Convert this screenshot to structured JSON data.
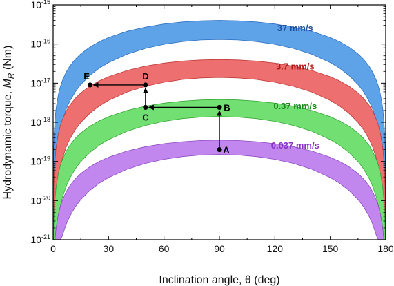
{
  "chart_data": {
    "type": "area",
    "xlabel": "Inclination angle, θ (deg)",
    "ylabel": {
      "base": "Hydrodynamic torque, ",
      "symbol": "M",
      "subscript": "R",
      "unit": " (Nm)"
    },
    "xlim": [
      0,
      180
    ],
    "ylim": [
      1e-21,
      1e-15
    ],
    "yscale": "log",
    "xticks": [
      0,
      30,
      60,
      90,
      120,
      150,
      180
    ],
    "xtick_labels": [
      "0",
      "30",
      "60",
      "90",
      "120",
      "150",
      "180"
    ],
    "yticks": [
      {
        "value": 1e-15,
        "base": "10",
        "exp": "-15"
      },
      {
        "value": 1e-16,
        "base": "10",
        "exp": "-16"
      },
      {
        "value": 1e-17,
        "base": "10",
        "exp": "-17"
      },
      {
        "value": 1e-18,
        "base": "10",
        "exp": "-18"
      },
      {
        "value": 1e-19,
        "base": "10",
        "exp": "-19"
      },
      {
        "value": 1e-20,
        "base": "10",
        "exp": "-20"
      },
      {
        "value": 1e-21,
        "base": "10",
        "exp": "-21"
      }
    ],
    "grid": false,
    "band_shape_note": "",
    "series": [
      {
        "name": "37 mm/s",
        "fill": "#5ea2e8",
        "stroke": "#2f70c0",
        "label_color": "#1f4f9c",
        "peak_upper": 4e-16,
        "peak_lower": 1.3e-16
      },
      {
        "name": "3.7 mm/s",
        "fill": "#ee6f6f",
        "stroke": "#c03a3a",
        "label_color": "#b01818",
        "peak_upper": 4e-17,
        "peak_lower": 1.4e-17
      },
      {
        "name": "0.37 mm/s",
        "fill": "#72df72",
        "stroke": "#35a535",
        "label_color": "#1d8a1d",
        "peak_upper": 3.8e-18,
        "peak_lower": 1.4e-18
      },
      {
        "name": "0.037 mm/s",
        "fill": "#c287ee",
        "stroke": "#8c49bd",
        "label_color": "#8a2fc7",
        "peak_upper": 3.5e-19,
        "peak_lower": 1.5e-19
      }
    ],
    "points": [
      {
        "label": "A",
        "x": 90,
        "y": 2e-19
      },
      {
        "label": "B",
        "x": 90,
        "y": 2.4e-18
      },
      {
        "label": "C",
        "x": 50,
        "y": 2.4e-18
      },
      {
        "label": "D",
        "x": 50,
        "y": 9e-18
      },
      {
        "label": "E",
        "x": 20,
        "y": 9e-18
      }
    ],
    "arrows": [
      {
        "from": "A",
        "to": "B"
      },
      {
        "from": "B",
        "to": "C"
      },
      {
        "from": "C",
        "to": "D"
      },
      {
        "from": "D",
        "to": "E"
      }
    ]
  }
}
